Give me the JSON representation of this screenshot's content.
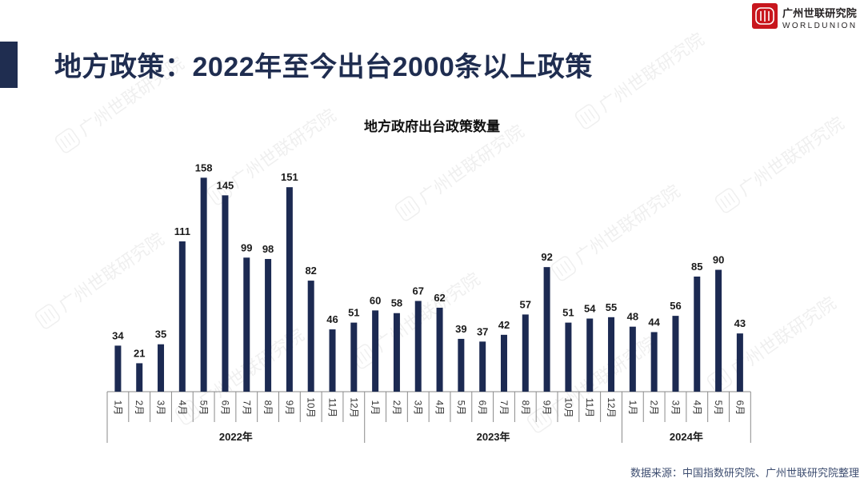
{
  "slide": {
    "title": "地方政策：2022年至今出台2000条以上政策",
    "source": "数据来源：中国指数研究院、广州世联研究院整理"
  },
  "logo": {
    "name_cn": "广州世联研究院",
    "name_en": "WORLDUNION",
    "icon": "worldunion-logo-icon"
  },
  "watermark": {
    "text": "广州世联研究院"
  },
  "colors": {
    "title": "#1f2d50",
    "bar": "#1c2a52",
    "logo_red": "#c8161d",
    "source_text": "#3d4d70"
  },
  "chart_data": {
    "type": "bar",
    "title": "地方政府出台政策数量",
    "groups": [
      {
        "label": "2022年",
        "categories": [
          "1月",
          "2月",
          "3月",
          "4月",
          "5月",
          "6月",
          "7月",
          "8月",
          "9月",
          "10月",
          "11月",
          "12月"
        ],
        "values": [
          34,
          21,
          35,
          111,
          158,
          145,
          99,
          98,
          151,
          82,
          46,
          51
        ]
      },
      {
        "label": "2023年",
        "categories": [
          "1月",
          "2月",
          "3月",
          "4月",
          "5月",
          "6月",
          "7月",
          "8月",
          "9月",
          "10月",
          "11月",
          "12月"
        ],
        "values": [
          60,
          58,
          67,
          62,
          39,
          37,
          42,
          57,
          92,
          51,
          54,
          55
        ]
      },
      {
        "label": "2024年",
        "categories": [
          "1月",
          "2月",
          "3月",
          "4月",
          "5月",
          "6月"
        ],
        "values": [
          48,
          44,
          56,
          85,
          90,
          43
        ]
      }
    ],
    "ylim": [
      0,
      170
    ],
    "grid": false,
    "legend": "none",
    "data_labels": true
  }
}
